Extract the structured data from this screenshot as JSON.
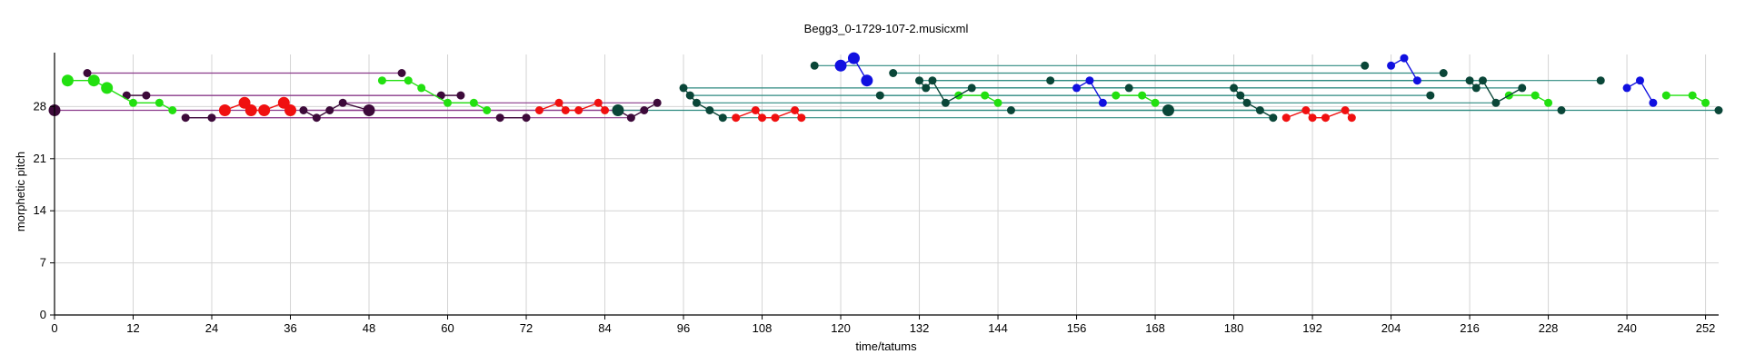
{
  "chart_data": {
    "type": "scatter",
    "title": "Begg3_0-1729-107-2.musicxml",
    "xlabel": "time/tatums",
    "ylabel": "morphetic pitch",
    "xlim": [
      0,
      254
    ],
    "ylim": [
      0,
      35
    ],
    "xticks": [
      0,
      12,
      24,
      36,
      48,
      60,
      72,
      84,
      96,
      108,
      120,
      132,
      144,
      156,
      168,
      180,
      192,
      204,
      216,
      228,
      240,
      252
    ],
    "yticks": [
      0,
      7,
      14,
      21,
      28
    ],
    "grid": true,
    "colors": {
      "purple": "#3d0a3a",
      "purple_line": "#8a3a8a",
      "green": "#22e010",
      "red": "#f01010",
      "teal": "#0a4638",
      "teal_line": "#2e8a80",
      "blue": "#1010e0"
    },
    "series": [
      {
        "color": "purple",
        "points": [
          [
            0,
            27.5
          ],
          [
            5,
            32.5
          ],
          [
            11,
            29.5
          ],
          [
            14,
            29.5
          ],
          [
            20,
            26.5
          ],
          [
            24,
            26.5
          ],
          [
            38,
            27.5
          ],
          [
            40,
            26.5
          ],
          [
            42,
            27.5
          ],
          [
            44,
            28.5
          ],
          [
            48,
            27.5
          ],
          [
            53,
            32.5
          ],
          [
            59,
            29.5
          ],
          [
            62,
            29.5
          ],
          [
            68,
            26.5
          ],
          [
            72,
            26.5
          ],
          [
            86,
            27.5
          ],
          [
            88,
            26.5
          ],
          [
            90,
            27.5
          ],
          [
            92,
            28.5
          ]
        ],
        "big": [
          [
            0,
            27.5
          ],
          [
            48,
            27.5
          ]
        ]
      },
      {
        "color": "green",
        "points": [
          [
            2,
            31.5
          ],
          [
            6,
            31.5
          ],
          [
            8,
            30.5
          ],
          [
            12,
            28.5
          ],
          [
            16,
            28.5
          ],
          [
            18,
            27.5
          ],
          [
            50,
            31.5
          ],
          [
            54,
            31.5
          ],
          [
            56,
            30.5
          ],
          [
            60,
            28.5
          ],
          [
            64,
            28.5
          ],
          [
            66,
            27.5
          ],
          [
            138,
            29.5
          ],
          [
            142,
            29.5
          ],
          [
            144,
            28.5
          ],
          [
            162,
            29.5
          ],
          [
            166,
            29.5
          ],
          [
            168,
            28.5
          ],
          [
            222,
            29.5
          ],
          [
            226,
            29.5
          ],
          [
            228,
            28.5
          ],
          [
            246,
            29.5
          ],
          [
            250,
            29.5
          ],
          [
            252,
            28.5
          ]
        ],
        "big": [
          [
            2,
            31.5
          ],
          [
            6,
            31.5
          ],
          [
            8,
            30.5
          ]
        ]
      },
      {
        "color": "red",
        "points": [
          [
            26,
            27.5
          ],
          [
            29,
            28.5
          ],
          [
            30,
            27.5
          ],
          [
            32,
            27.5
          ],
          [
            35,
            28.5
          ],
          [
            36,
            27.5
          ],
          [
            74,
            27.5
          ],
          [
            77,
            28.5
          ],
          [
            78,
            27.5
          ],
          [
            80,
            27.5
          ],
          [
            83,
            28.5
          ],
          [
            84,
            27.5
          ],
          [
            104,
            26.5
          ],
          [
            107,
            27.5
          ],
          [
            108,
            26.5
          ],
          [
            110,
            26.5
          ],
          [
            113,
            27.5
          ],
          [
            114,
            26.5
          ],
          [
            188,
            26.5
          ],
          [
            191,
            27.5
          ],
          [
            192,
            26.5
          ],
          [
            194,
            26.5
          ],
          [
            197,
            27.5
          ],
          [
            198,
            26.5
          ]
        ],
        "big": [
          [
            26,
            27.5
          ],
          [
            29,
            28.5
          ],
          [
            30,
            27.5
          ],
          [
            32,
            27.5
          ],
          [
            35,
            28.5
          ],
          [
            36,
            27.5
          ]
        ]
      },
      {
        "color": "teal",
        "points": [
          [
            86,
            27.5
          ],
          [
            96,
            30.5
          ],
          [
            97,
            29.5
          ],
          [
            98,
            28.5
          ],
          [
            100,
            27.5
          ],
          [
            102,
            26.5
          ],
          [
            116,
            33.5
          ],
          [
            128,
            32.5
          ],
          [
            126,
            29.5
          ],
          [
            132,
            31.5
          ],
          [
            133,
            30.5
          ],
          [
            134,
            31.5
          ],
          [
            136,
            28.5
          ],
          [
            140,
            30.5
          ],
          [
            146,
            27.5
          ],
          [
            152,
            31.5
          ],
          [
            164,
            30.5
          ],
          [
            170,
            27.5
          ],
          [
            180,
            30.5
          ],
          [
            181,
            29.5
          ],
          [
            182,
            28.5
          ],
          [
            184,
            27.5
          ],
          [
            186,
            26.5
          ],
          [
            200,
            33.5
          ],
          [
            212,
            32.5
          ],
          [
            210,
            29.5
          ],
          [
            216,
            31.5
          ],
          [
            217,
            30.5
          ],
          [
            218,
            31.5
          ],
          [
            220,
            28.5
          ],
          [
            224,
            30.5
          ],
          [
            230,
            27.5
          ],
          [
            236,
            31.5
          ],
          [
            254,
            27.5
          ]
        ],
        "big": [
          [
            86,
            27.5
          ],
          [
            170,
            27.5
          ]
        ]
      },
      {
        "color": "blue",
        "points": [
          [
            120,
            33.5
          ],
          [
            122,
            34.5
          ],
          [
            124,
            31.5
          ],
          [
            156,
            30.5
          ],
          [
            158,
            31.5
          ],
          [
            160,
            28.5
          ],
          [
            204,
            33.5
          ],
          [
            206,
            34.5
          ],
          [
            208,
            31.5
          ],
          [
            240,
            30.5
          ],
          [
            242,
            31.5
          ],
          [
            244,
            28.5
          ]
        ],
        "big": [
          [
            120,
            33.5
          ],
          [
            122,
            34.5
          ],
          [
            124,
            31.5
          ]
        ]
      }
    ],
    "pattern_lines": [
      {
        "color": "purple_line",
        "x1": 5,
        "x2": 53,
        "y": 32.5
      },
      {
        "color": "purple_line",
        "x1": 11,
        "x2": 59,
        "y": 29.5
      },
      {
        "color": "purple_line",
        "x1": 14,
        "x2": 62,
        "y": 29.5
      },
      {
        "color": "purple_line",
        "x1": 20,
        "x2": 68,
        "y": 26.5
      },
      {
        "color": "purple_line",
        "x1": 24,
        "x2": 72,
        "y": 26.5
      },
      {
        "color": "purple_line",
        "x1": 38,
        "x2": 86,
        "y": 27.5
      },
      {
        "color": "purple_line",
        "x1": 40,
        "x2": 88,
        "y": 26.5
      },
      {
        "color": "purple_line",
        "x1": 42,
        "x2": 90,
        "y": 27.5
      },
      {
        "color": "purple_line",
        "x1": 44,
        "x2": 92,
        "y": 28.5
      },
      {
        "color": "purple_line",
        "x1": 0,
        "x2": 48,
        "y": 27.5
      },
      {
        "color": "teal_line",
        "x1": 86,
        "x2": 170,
        "y": 27.5
      },
      {
        "color": "teal_line",
        "x1": 96,
        "x2": 180,
        "y": 30.5
      },
      {
        "color": "teal_line",
        "x1": 97,
        "x2": 181,
        "y": 29.5
      },
      {
        "color": "teal_line",
        "x1": 98,
        "x2": 182,
        "y": 28.5
      },
      {
        "color": "teal_line",
        "x1": 100,
        "x2": 184,
        "y": 27.5
      },
      {
        "color": "teal_line",
        "x1": 102,
        "x2": 186,
        "y": 26.5
      },
      {
        "color": "teal_line",
        "x1": 116,
        "x2": 200,
        "y": 33.5
      },
      {
        "color": "teal_line",
        "x1": 128,
        "x2": 212,
        "y": 32.5
      },
      {
        "color": "teal_line",
        "x1": 126,
        "x2": 210,
        "y": 29.5
      },
      {
        "color": "teal_line",
        "x1": 132,
        "x2": 216,
        "y": 31.5
      },
      {
        "color": "teal_line",
        "x1": 133,
        "x2": 217,
        "y": 30.5
      },
      {
        "color": "teal_line",
        "x1": 134,
        "x2": 218,
        "y": 31.5
      },
      {
        "color": "teal_line",
        "x1": 136,
        "x2": 220,
        "y": 28.5
      },
      {
        "color": "teal_line",
        "x1": 140,
        "x2": 224,
        "y": 30.5
      },
      {
        "color": "teal_line",
        "x1": 146,
        "x2": 230,
        "y": 27.5
      },
      {
        "color": "teal_line",
        "x1": 152,
        "x2": 236,
        "y": 31.5
      },
      {
        "color": "teal_line",
        "x1": 170,
        "x2": 254,
        "y": 27.5
      }
    ]
  }
}
